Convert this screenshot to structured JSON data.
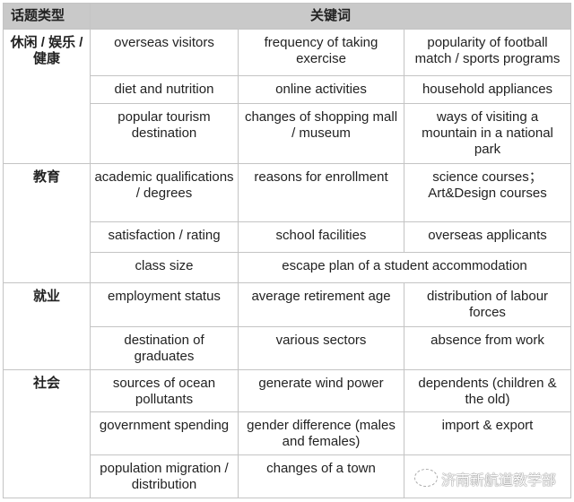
{
  "header": {
    "category": "话题类型",
    "keywords": "关键词"
  },
  "sections": [
    {
      "category": "休闲 / 娱乐 / 健康",
      "rows": [
        [
          "overseas visitors",
          "frequency of taking exercise",
          "popularity of football match / sports programs"
        ],
        [
          "diet and nutrition",
          "online activities",
          "household appliances"
        ],
        [
          "popular tourism destination",
          "changes of shopping mall / museum",
          "ways of visiting a mountain in a national park"
        ]
      ]
    },
    {
      "category": "教育",
      "rows": [
        [
          "academic qualifications / degrees",
          "reasons for enrollment",
          "science courses；Art&Design courses"
        ],
        [
          "satisfaction / rating",
          "school facilities",
          "overseas applicants"
        ],
        [
          "class size",
          "escape plan of a student accommodation"
        ]
      ]
    },
    {
      "category": "就业",
      "rows": [
        [
          "employment status",
          "average retirement age",
          "distribution of labour forces"
        ],
        [
          "destination of graduates",
          "various sectors",
          "absence from work"
        ]
      ]
    },
    {
      "category": "社会",
      "rows": [
        [
          "sources of ocean pollutants",
          "generate wind power",
          "dependents (children & the old)"
        ],
        [
          "government spending",
          "gender difference (males and females)",
          "import & export"
        ],
        [
          "population migration / distribution",
          "changes of a town",
          ""
        ]
      ]
    }
  ],
  "watermark": "济南新航道教学部"
}
